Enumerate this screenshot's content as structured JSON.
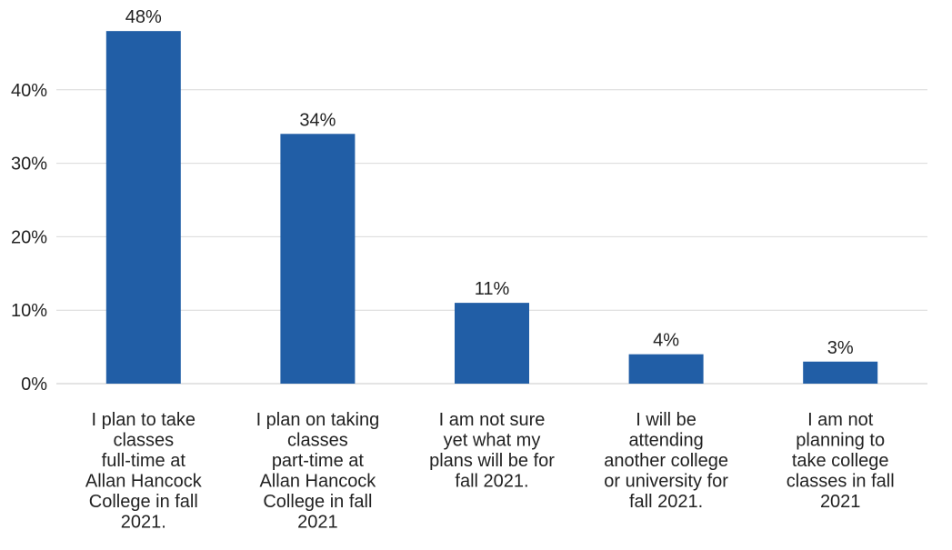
{
  "chart_data": {
    "type": "bar",
    "categories": [
      [
        "I plan to take",
        "classes",
        "full-time at",
        "Allan Hancock",
        "College in fall",
        "2021."
      ],
      [
        "I plan on taking",
        "classes",
        "part-time at",
        "Allan Hancock",
        "College in fall",
        "2021"
      ],
      [
        "I am not sure",
        "yet what my",
        "plans will be for",
        "fall 2021."
      ],
      [
        "I will be",
        "attending",
        "another college",
        "or university for",
        "fall 2021."
      ],
      [
        "I am not",
        "planning to",
        "take college",
        "classes in fall",
        "2021"
      ]
    ],
    "values": [
      48,
      34,
      11,
      4,
      3
    ],
    "data_labels": [
      "48%",
      "34%",
      "11%",
      "4%",
      "3%"
    ],
    "y_ticks": [
      0,
      10,
      20,
      30,
      40
    ],
    "y_tick_labels": [
      "0%",
      "10%",
      "20%",
      "30%",
      "40%"
    ],
    "ylim": [
      0,
      50
    ],
    "title": "",
    "xlabel": "",
    "ylabel": "",
    "grid": true,
    "bar_color": "#215ea6",
    "grid_color": "#d9d9d9"
  }
}
